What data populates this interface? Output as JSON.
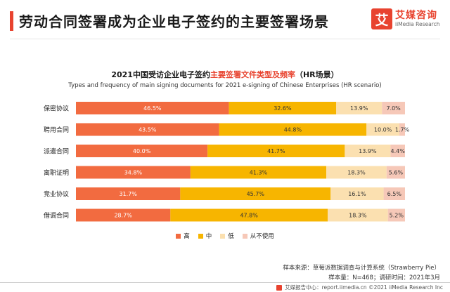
{
  "header": {
    "title": "劳动合同签署成为企业电子签约的主要签署场景",
    "logo_mark": "艾",
    "logo_cn": "艾媒咨询",
    "logo_en": "iiMedia Research"
  },
  "chart_data": {
    "type": "bar",
    "orientation": "horizontal",
    "stacked": true,
    "title_main": "2021中国受访企业电子签约",
    "title_highlight": "主要签署文件类型及频率",
    "title_tail": "（HR场景）",
    "subtitle": "Types and frequency of main signing documents for 2021 e-signing of Chinese Enterprises (HR scenario)",
    "categories": [
      "保密协议",
      "聘用合同",
      "派遣合同",
      "离职证明",
      "竞业协议",
      "借调合同"
    ],
    "series": [
      {
        "name": "高",
        "color": "#f26b40",
        "values": [
          46.5,
          43.5,
          40.0,
          34.8,
          31.7,
          28.7
        ],
        "labels": [
          "46.5%",
          "43.5%",
          "40.0%",
          "34.8%",
          "31.7%",
          "28.7%"
        ]
      },
      {
        "name": "中",
        "color": "#f7b500",
        "values": [
          32.6,
          44.8,
          41.7,
          41.3,
          45.7,
          47.8
        ],
        "labels": [
          "32.6%",
          "44.8%",
          "41.7%",
          "41.3%",
          "45.7%",
          "47.8%"
        ]
      },
      {
        "name": "低",
        "color": "#fbe0b0",
        "values": [
          13.9,
          10.0,
          13.9,
          18.3,
          16.1,
          18.3
        ],
        "labels": [
          "13.9%",
          "10.0%",
          "13.9%",
          "18.3%",
          "16.1%",
          "18.3%"
        ]
      },
      {
        "name": "从不使用",
        "color": "#f6c8b8",
        "values": [
          7.0,
          1.7,
          4.4,
          5.6,
          6.5,
          5.2
        ],
        "labels": [
          "7.0%",
          "1.7%",
          "4.4%",
          "5.6%",
          "6.5%",
          "5.2%"
        ]
      }
    ],
    "xlim": [
      0,
      100
    ],
    "legend_position": "bottom"
  },
  "source": {
    "line1": "样本来源：草莓派数据调查与计算系统（Strawberry Pie）",
    "line2": "样本量：N=468；调研时间：2021年3月"
  },
  "footer": {
    "text": "艾媒报告中心：report.iimedia.cn  ©2021  iiMedia Research  Inc"
  }
}
